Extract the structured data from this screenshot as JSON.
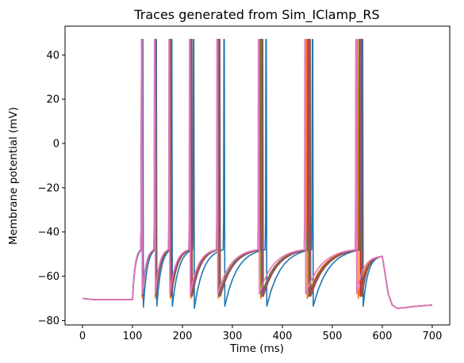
{
  "chart_data": {
    "type": "line",
    "title": "Traces generated from Sim_IClamp_RS",
    "xlabel": "Time (ms)",
    "ylabel": "Membrane potential (mV)",
    "xlim": [
      -35,
      735
    ],
    "ylim": [
      -82,
      53
    ],
    "xticks": [
      0,
      100,
      200,
      300,
      400,
      500,
      600,
      700
    ],
    "yticks": [
      -80,
      -60,
      -40,
      -20,
      0,
      20,
      40
    ],
    "grid": false,
    "legend": "none",
    "series": [
      {
        "color": "#1f77b4",
        "spikes": [
          120,
          147,
          178,
          222,
          283,
          367,
          460,
          560
        ],
        "hyper_dips": [
          -74,
          -73.5,
          -73.5,
          -74.5,
          -73.5,
          -73.5,
          -73.5,
          -73.5
        ]
      },
      {
        "color": "#ff7f0e",
        "spikes": [
          118,
          144,
          174,
          215,
          270,
          355,
          448,
          550
        ],
        "hyper_dips": [
          -70,
          -70,
          -70,
          -70,
          -70,
          -70,
          -70,
          -70
        ]
      },
      {
        "color": "#2ca02c",
        "spikes": [
          118,
          145,
          175,
          216,
          271,
          356,
          451,
          554
        ],
        "hyper_dips": [
          -69,
          -69,
          -69,
          -69,
          -69,
          -69,
          -69,
          -69
        ]
      },
      {
        "color": "#d62728",
        "spikes": [
          118,
          145,
          175,
          216,
          272,
          358,
          452,
          555
        ],
        "hyper_dips": [
          -69,
          -69,
          -69,
          -69,
          -69,
          -69,
          -69,
          -69
        ]
      },
      {
        "color": "#9467bd",
        "spikes": [
          118,
          145,
          176,
          217,
          273,
          359,
          454,
          557
        ],
        "hyper_dips": [
          -69,
          -69,
          -69,
          -69,
          -69,
          -69,
          -69,
          -69
        ]
      },
      {
        "color": "#8c564b",
        "spikes": [
          118,
          146,
          176,
          218,
          274,
          360,
          455,
          558
        ],
        "hyper_dips": [
          -69,
          -69,
          -69,
          -69,
          -69,
          -69,
          -69,
          -69
        ]
      },
      {
        "color": "#e377c2",
        "spikes": [
          118,
          144,
          173,
          214,
          269,
          352,
          445,
          547
        ],
        "hyper_dips": [
          -68,
          -68,
          -68,
          -68,
          -68,
          -68,
          -68,
          -68
        ]
      }
    ],
    "rest_potential": -70,
    "rest_before_stim": -70.5,
    "stim_start": 100,
    "stim_end": 600,
    "after_stim_min": -74.5,
    "end_potential": -73,
    "spike_peak": 47,
    "t_end": 700
  }
}
